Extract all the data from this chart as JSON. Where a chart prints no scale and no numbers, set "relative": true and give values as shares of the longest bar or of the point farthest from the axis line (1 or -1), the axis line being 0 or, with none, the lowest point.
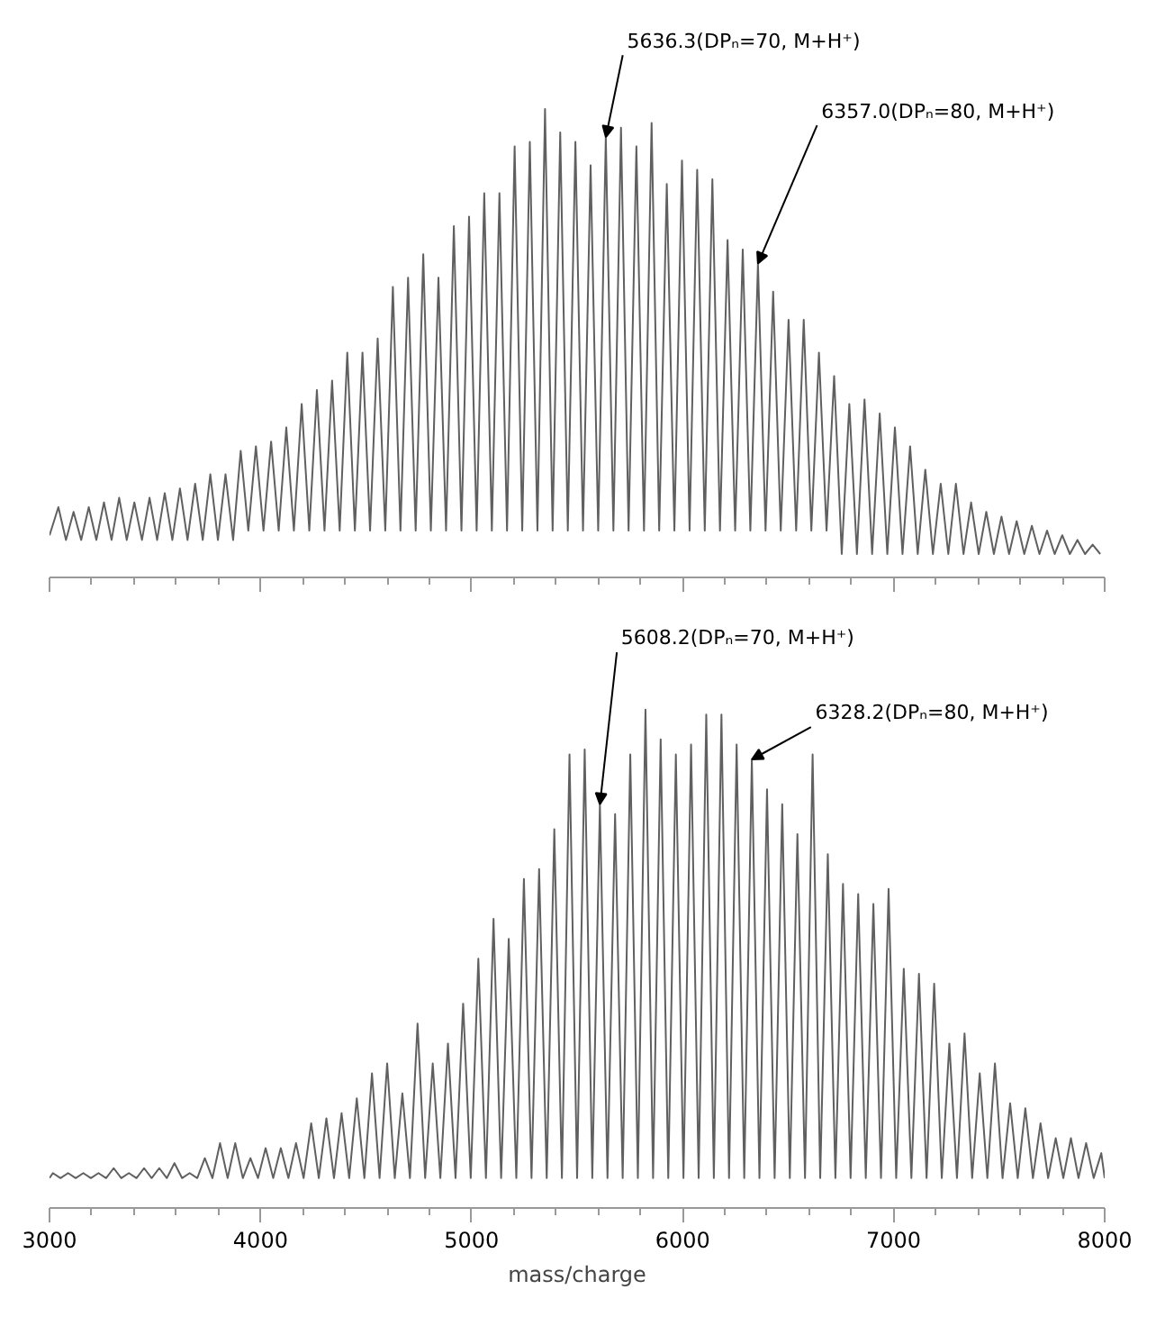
{
  "chart_data": [
    {
      "type": "line",
      "relative": true,
      "color": "#606060",
      "xlim": [
        3000,
        8000
      ],
      "xticks": [
        3000,
        4000,
        5000,
        6000,
        7000,
        8000
      ],
      "tick_labels": false,
      "annotations": [
        {
          "text": "5636.3(DPₙ=70, M+H⁺)",
          "x": 5636.3,
          "y": 0.94
        },
        {
          "text": "6357.0(DPₙ=80, M+H⁺)",
          "x": 6357.0,
          "y": 0.67
        }
      ],
      "x": [
        3000,
        3042,
        3078,
        3114,
        3150,
        3186,
        3222,
        3258,
        3294,
        3330,
        3366,
        3402,
        3438,
        3474,
        3510,
        3546,
        3582,
        3618,
        3654,
        3690,
        3726,
        3762,
        3798,
        3834,
        3870,
        3906,
        3942,
        3978,
        4014,
        4050,
        4086,
        4122,
        4158,
        4195,
        4231,
        4267,
        4303,
        4339,
        4375,
        4411,
        4447,
        4483,
        4519,
        4555,
        4591,
        4627,
        4663,
        4699,
        4735,
        4771,
        4807,
        4843,
        4879,
        4916,
        4952,
        4988,
        5024,
        5060,
        5096,
        5132,
        5168,
        5204,
        5240,
        5276,
        5312,
        5348,
        5384,
        5420,
        5456,
        5492,
        5528,
        5564,
        5600,
        5636,
        5672,
        5708,
        5744,
        5781,
        5817,
        5853,
        5889,
        5925,
        5961,
        5997,
        6033,
        6069,
        6105,
        6141,
        6177,
        6213,
        6249,
        6285,
        6321,
        6357,
        6393,
        6429,
        6465,
        6502,
        6538,
        6574,
        6610,
        6646,
        6682,
        6718,
        6754,
        6790,
        6826,
        6862,
        6898,
        6934,
        6970,
        7006,
        7042,
        7078,
        7114,
        7150,
        7186,
        7223,
        7259,
        7295,
        7331,
        7367,
        7403,
        7439,
        7475,
        7511,
        7547,
        7583,
        7619,
        7655,
        7691,
        7727,
        7763,
        7799,
        7835,
        7871,
        7907,
        7943,
        7979
      ],
      "values": [
        0.09,
        0.15,
        0.08,
        0.14,
        0.08,
        0.15,
        0.08,
        0.16,
        0.08,
        0.17,
        0.08,
        0.16,
        0.08,
        0.17,
        0.08,
        0.18,
        0.08,
        0.19,
        0.08,
        0.2,
        0.08,
        0.22,
        0.08,
        0.22,
        0.08,
        0.27,
        0.1,
        0.28,
        0.1,
        0.29,
        0.1,
        0.32,
        0.1,
        0.37,
        0.1,
        0.4,
        0.1,
        0.42,
        0.1,
        0.48,
        0.1,
        0.48,
        0.1,
        0.51,
        0.1,
        0.62,
        0.1,
        0.64,
        0.1,
        0.69,
        0.1,
        0.64,
        0.1,
        0.75,
        0.1,
        0.77,
        0.1,
        0.82,
        0.1,
        0.82,
        0.1,
        0.92,
        0.1,
        0.93,
        0.1,
        1.0,
        0.1,
        0.95,
        0.1,
        0.93,
        0.1,
        0.88,
        0.1,
        0.94,
        0.1,
        0.96,
        0.1,
        0.92,
        0.1,
        0.97,
        0.1,
        0.84,
        0.1,
        0.89,
        0.1,
        0.87,
        0.1,
        0.85,
        0.1,
        0.72,
        0.1,
        0.7,
        0.1,
        0.67,
        0.1,
        0.61,
        0.1,
        0.55,
        0.1,
        0.55,
        0.1,
        0.48,
        0.1,
        0.43,
        0.05,
        0.37,
        0.05,
        0.38,
        0.05,
        0.35,
        0.05,
        0.32,
        0.05,
        0.28,
        0.05,
        0.23,
        0.05,
        0.2,
        0.05,
        0.2,
        0.05,
        0.16,
        0.05,
        0.14,
        0.05,
        0.13,
        0.05,
        0.12,
        0.05,
        0.11,
        0.05,
        0.1,
        0.05,
        0.09,
        0.05,
        0.08,
        0.05,
        0.07,
        0.05
      ]
    },
    {
      "type": "line",
      "relative": true,
      "color": "#606060",
      "xlim": [
        3000,
        8000
      ],
      "xticks": [
        3000,
        4000,
        5000,
        6000,
        7000,
        8000
      ],
      "xlabel": "mass/charge",
      "annotations": [
        {
          "text": "5608.2(DPₙ=70, M+H⁺)",
          "x": 5608.2,
          "y": 0.81
        },
        {
          "text": "6328.2(DPₙ=80, M+H⁺)",
          "x": 6328.2,
          "y": 0.9
        }
      ],
      "x": [
        3000,
        3016,
        3052,
        3088,
        3124,
        3160,
        3196,
        3232,
        3268,
        3304,
        3340,
        3376,
        3412,
        3448,
        3484,
        3520,
        3556,
        3592,
        3628,
        3664,
        3700,
        3736,
        3772,
        3808,
        3844,
        3880,
        3916,
        3952,
        3988,
        4024,
        4060,
        4096,
        4132,
        4168,
        4204,
        4240,
        4276,
        4312,
        4348,
        4384,
        4420,
        4456,
        4492,
        4528,
        4564,
        4600,
        4636,
        4672,
        4708,
        4744,
        4780,
        4816,
        4852,
        4888,
        4924,
        4960,
        4996,
        5032,
        5068,
        5104,
        5140,
        5176,
        5212,
        5248,
        5284,
        5320,
        5356,
        5392,
        5428,
        5464,
        5500,
        5536,
        5572,
        5608,
        5644,
        5680,
        5716,
        5752,
        5788,
        5824,
        5860,
        5896,
        5932,
        5968,
        6004,
        6040,
        6076,
        6112,
        6148,
        6184,
        6220,
        6256,
        6292,
        6328,
        6364,
        6400,
        6436,
        6472,
        6508,
        6544,
        6580,
        6616,
        6652,
        6688,
        6724,
        6760,
        6796,
        6832,
        6868,
        6904,
        6940,
        6976,
        7012,
        7048,
        7084,
        7120,
        7156,
        7192,
        7228,
        7264,
        7300,
        7336,
        7372,
        7408,
        7444,
        7480,
        7516,
        7552,
        7588,
        7624,
        7660,
        7696,
        7732,
        7768,
        7804,
        7840,
        7876,
        7912,
        7948,
        7984,
        8000
      ],
      "values": [
        0.06,
        0.07,
        0.06,
        0.07,
        0.06,
        0.07,
        0.06,
        0.07,
        0.06,
        0.08,
        0.06,
        0.07,
        0.06,
        0.08,
        0.06,
        0.08,
        0.06,
        0.09,
        0.06,
        0.07,
        0.06,
        0.1,
        0.06,
        0.13,
        0.06,
        0.13,
        0.06,
        0.1,
        0.06,
        0.12,
        0.06,
        0.12,
        0.06,
        0.13,
        0.06,
        0.17,
        0.06,
        0.18,
        0.06,
        0.19,
        0.06,
        0.22,
        0.06,
        0.27,
        0.06,
        0.29,
        0.06,
        0.23,
        0.06,
        0.37,
        0.06,
        0.29,
        0.06,
        0.33,
        0.06,
        0.41,
        0.06,
        0.5,
        0.06,
        0.58,
        0.06,
        0.54,
        0.06,
        0.66,
        0.06,
        0.68,
        0.06,
        0.76,
        0.06,
        0.91,
        0.06,
        0.92,
        0.06,
        0.81,
        0.06,
        0.79,
        0.06,
        0.91,
        0.06,
        1.0,
        0.06,
        0.94,
        0.06,
        0.91,
        0.06,
        0.93,
        0.06,
        0.99,
        0.06,
        0.99,
        0.06,
        0.93,
        0.06,
        0.9,
        0.06,
        0.84,
        0.06,
        0.81,
        0.06,
        0.75,
        0.06,
        0.91,
        0.06,
        0.71,
        0.06,
        0.65,
        0.06,
        0.63,
        0.06,
        0.61,
        0.06,
        0.64,
        0.06,
        0.48,
        0.06,
        0.47,
        0.06,
        0.45,
        0.06,
        0.33,
        0.06,
        0.35,
        0.06,
        0.27,
        0.06,
        0.29,
        0.06,
        0.21,
        0.06,
        0.2,
        0.06,
        0.17,
        0.06,
        0.14,
        0.06,
        0.14,
        0.06,
        0.13,
        0.06,
        0.11,
        0.06
      ]
    }
  ]
}
